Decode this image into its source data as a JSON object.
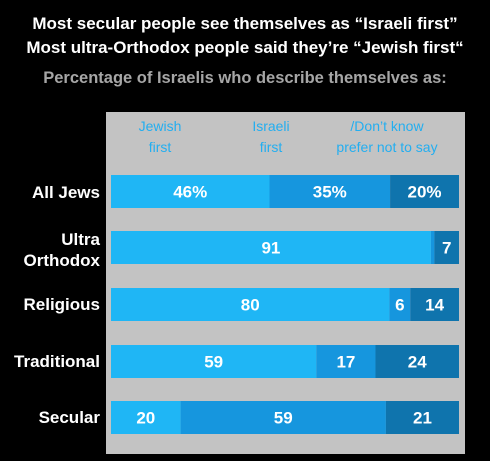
{
  "title_line1": "Most secular people see themselves as “Israeli first”",
  "title_line2": "Most ultra-Orthodox people said they’re “Jewish first“",
  "subtitle": "Percentage of Israelis who describe themselves as:",
  "colors": {
    "background": "#000000",
    "panel": "#c3c3c3",
    "jewish_first": "#1fb6f5",
    "israeli_first": "#1696de",
    "dont_know": "#0f74ad",
    "header_text": "#23aef0"
  },
  "chart_data": {
    "type": "bar",
    "orientation": "horizontal",
    "stacked": true,
    "title": "Most secular people see themselves as “Israeli first” / Most ultra-Orthodox people said they’re “Jewish first“",
    "subtitle": "Percentage of Israelis who describe themselves as:",
    "legend_placement": "top",
    "categories": [
      "All Jews",
      "Ultra Orthodox",
      "Religious",
      "Traditional",
      "Secular"
    ],
    "series": [
      {
        "name": "Jewish first",
        "values": [
          46,
          91,
          80,
          59,
          20
        ],
        "labels": [
          "46%",
          "91",
          "80",
          "59",
          "20"
        ]
      },
      {
        "name": "Israeli first",
        "values": [
          35,
          1,
          6,
          17,
          59
        ],
        "labels": [
          "35%",
          "",
          "6",
          "17",
          "59"
        ]
      },
      {
        "name": "/Don’t know prefer not to say",
        "values": [
          20,
          7,
          14,
          24,
          21
        ],
        "labels": [
          "20%",
          "7",
          "14",
          "24",
          "21"
        ]
      }
    ]
  },
  "header_labels": [
    "Jewish\nfirst",
    "Israeli\nfirst",
    "/Don’t know\nprefer not to say"
  ],
  "category_labels": [
    "All Jews",
    "Ultra\nOrthodox",
    "Religious",
    "Traditional",
    "Secular"
  ]
}
